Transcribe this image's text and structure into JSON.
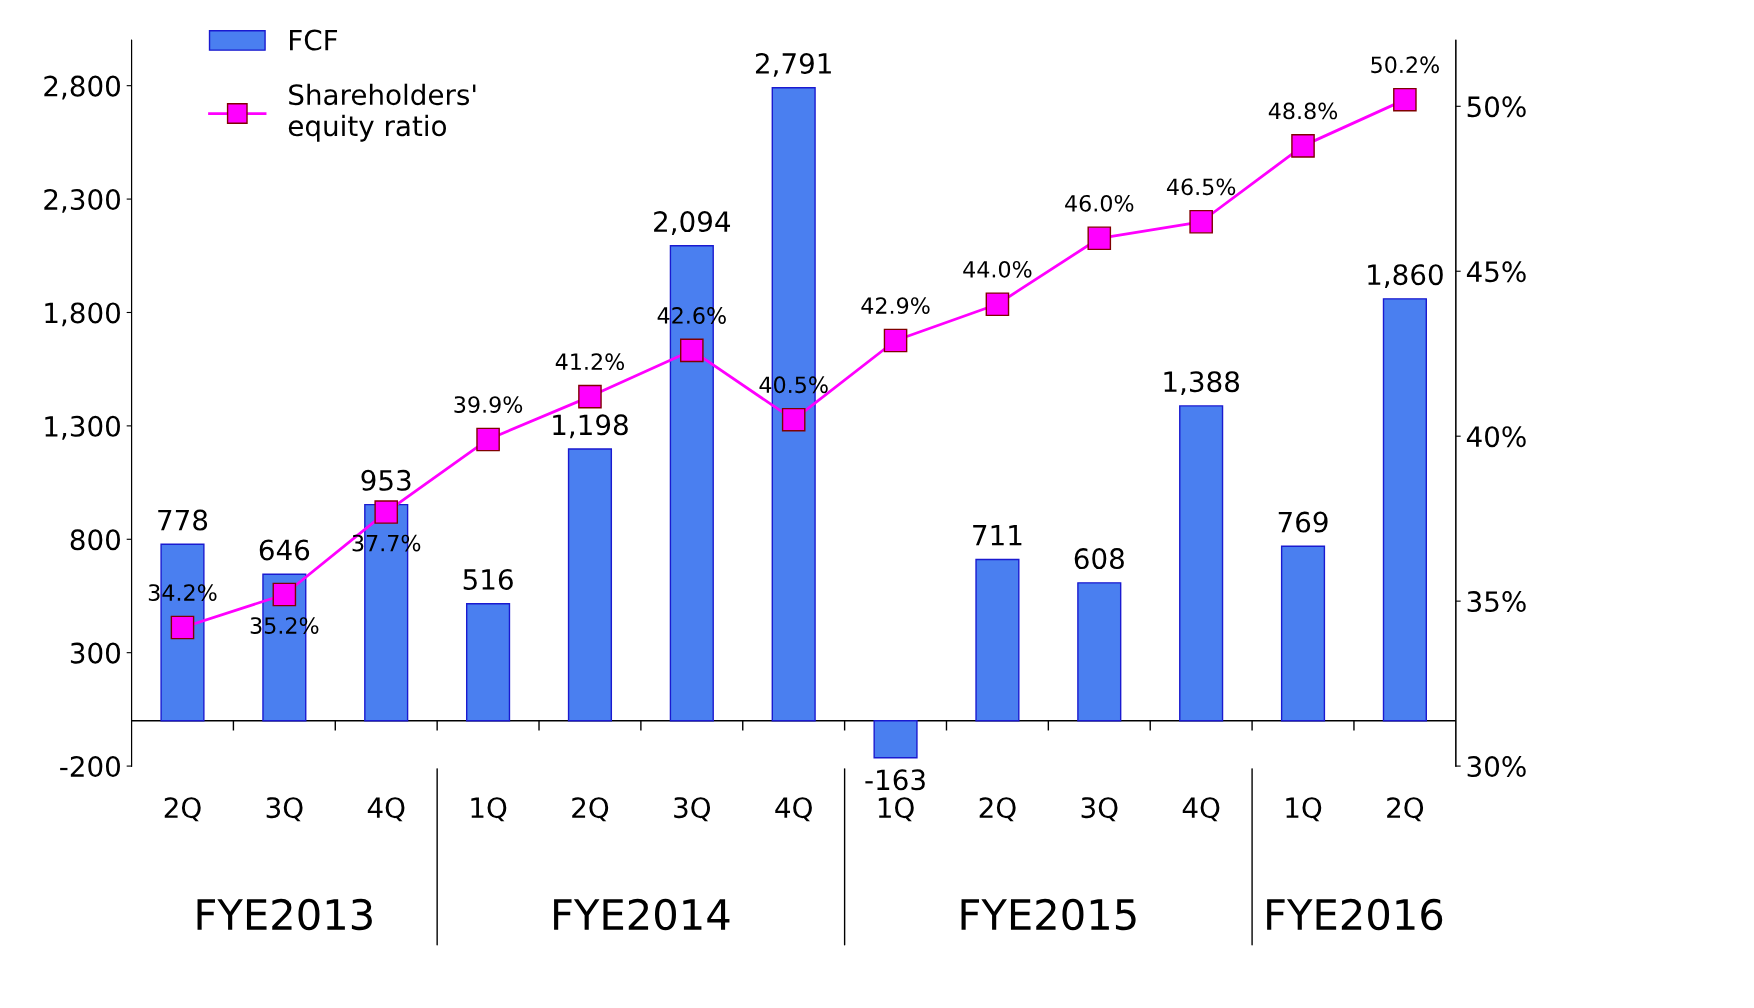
{
  "chart_data": {
    "type": "bar",
    "categories": [
      "2Q",
      "3Q",
      "4Q",
      "1Q",
      "2Q",
      "3Q",
      "4Q",
      "1Q",
      "2Q",
      "3Q",
      "4Q",
      "1Q",
      "2Q"
    ],
    "series": [
      {
        "name": "FCF",
        "color": "#4a7ff0",
        "values": [
          778,
          646,
          953,
          516,
          1198,
          2094,
          2791,
          -163,
          711,
          608,
          1388,
          769,
          1860
        ],
        "value_labels": [
          "778",
          "646",
          "953",
          "516",
          "1,198",
          "2,094",
          "2,791",
          "-163",
          "711",
          "608",
          "1,388",
          "769",
          "1,860"
        ]
      },
      {
        "name": "Shareholders'\nequity ratio",
        "type": "line",
        "axis": "y2",
        "color": "#ff00ff",
        "marker": "square",
        "values": [
          34.2,
          35.2,
          37.7,
          39.9,
          41.2,
          42.6,
          40.5,
          42.9,
          44.0,
          46.0,
          46.5,
          48.8,
          50.2
        ],
        "value_labels": [
          "34.2%",
          "35.2%",
          "37.7%",
          "39.9%",
          "41.2%",
          "42.6%",
          "40.5%",
          "42.9%",
          "44.0%",
          "46.0%",
          "46.5%",
          "48.8%",
          "50.2%"
        ]
      }
    ],
    "ylim": [
      -200,
      3000
    ],
    "yticks": [
      -200,
      300,
      800,
      {
        "value": 1300,
        "label": "1,300"
      },
      {
        "value": 1800,
        "label": "1,800"
      },
      {
        "value": 2300,
        "label": "2,300"
      },
      {
        "value": 2800,
        "label": "2,800"
      }
    ],
    "y2lim": [
      30,
      52
    ],
    "y2ticks": [
      {
        "value": 30,
        "label": "30%"
      },
      {
        "value": 35,
        "label": "35%"
      },
      {
        "value": 40,
        "label": "40%"
      },
      {
        "value": 45,
        "label": "45%"
      },
      {
        "value": 50,
        "label": "50%"
      }
    ],
    "annotations": [
      "FYE2013",
      "FYE2014",
      "FYE2015",
      "FYE2016"
    ],
    "legend": "top left",
    "grid": false
  }
}
